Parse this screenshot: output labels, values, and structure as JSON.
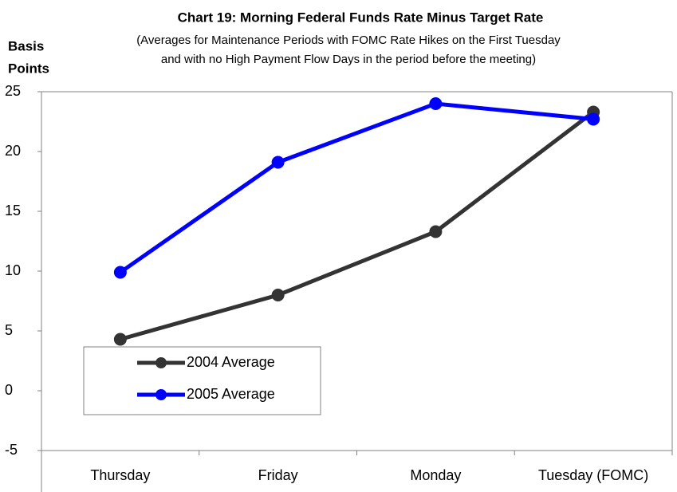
{
  "chart_data": {
    "type": "line",
    "title": "Chart 19:  Morning Federal Funds Rate Minus Target Rate",
    "subtitle": [
      "(Averages for Maintenance Periods with FOMC Rate Hikes on the First Tuesday",
      "and with no High Payment Flow Days in the period before the meeting)"
    ],
    "y_label": [
      "Basis",
      "Points"
    ],
    "categories": [
      "Thursday",
      "Friday",
      "Monday",
      "Tuesday (FOMC)"
    ],
    "series": [
      {
        "name": "2004 Average",
        "color": "#333333",
        "values": [
          4.3,
          8.0,
          13.3,
          23.3
        ]
      },
      {
        "name": "2005 Average",
        "color": "#0000ff",
        "values": [
          9.9,
          19.1,
          24.0,
          22.7
        ]
      }
    ],
    "ylim": [
      -5,
      25
    ],
    "yticks": [
      -5,
      0,
      5,
      10,
      15,
      20,
      25
    ],
    "grid": false
  }
}
